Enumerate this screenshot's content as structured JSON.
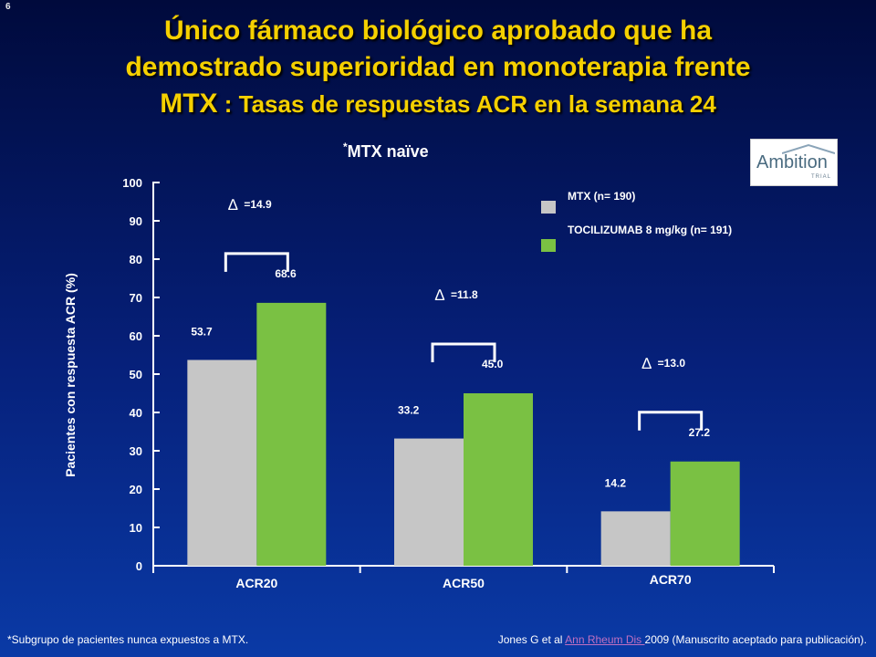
{
  "slide_number": "6",
  "title": {
    "line1": "Único fármaco biológico aprobado que ha",
    "line2": "demostrado superioridad en monoterapia frente",
    "line3_main": "MTX",
    "line3_sub": " : Tasas de respuestas ACR en la semana 24"
  },
  "subgroup_label": {
    "marker": "*",
    "text": "MTX naïve"
  },
  "logo": {
    "text": "Ambition",
    "tag": "TRIAL"
  },
  "chart_data": {
    "type": "bar",
    "categories": [
      "ACR20",
      "ACR50",
      "ACR70"
    ],
    "ylabel": "Pacientes con respuesta ACR (%)",
    "xlabel": "",
    "ylim": [
      0,
      100
    ],
    "yticks": [
      0,
      10,
      20,
      30,
      40,
      50,
      60,
      70,
      80,
      90,
      100
    ],
    "legend_position": "top-right",
    "grid": false,
    "series": [
      {
        "name": "MTX (n= 190)",
        "color": "#c6c6c6",
        "values": [
          53.7,
          33.2,
          14.2
        ],
        "labels": [
          "53.7",
          "33.2",
          "14.2"
        ]
      },
      {
        "name": "TOCILIZUMAB 8 mg/kg (n= 191)",
        "color": "#7ac143",
        "values": [
          68.6,
          45.0,
          27.2
        ],
        "labels": [
          "68.6",
          "45.0",
          "27.2"
        ]
      }
    ],
    "deltas": [
      {
        "symbol": "∆",
        "label": "=14.9"
      },
      {
        "symbol": "∆",
        "label": "=11.8"
      },
      {
        "symbol": "∆",
        "label": "=13.0"
      }
    ]
  },
  "footer": {
    "note": "*Subgrupo de pacientes nunca expuestos a MTX.",
    "citation_prefix": "Jones G et al ",
    "citation_link": "Ann Rheum Dis ",
    "citation_suffix": "2009 (Manuscrito aceptado para publicación)."
  }
}
